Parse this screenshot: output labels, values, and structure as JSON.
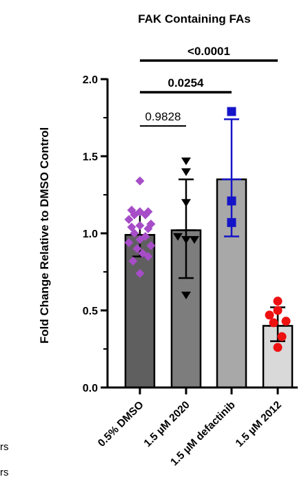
{
  "chart_data": {
    "type": "bar",
    "title": "FAK Containing FAs",
    "ylabel": "Fold Change Relative to DMSO Control",
    "xlabel": "",
    "ylim": [
      0,
      2.0
    ],
    "yticks": [
      "0.0",
      "0.5",
      "1.0",
      "1.5",
      "2.0"
    ],
    "categories": [
      "0.5% DMSO",
      "1.5 µM 2020",
      "1.5 µM defactinib",
      "1.5 µM 2012"
    ],
    "values": [
      0.99,
      1.02,
      1.35,
      0.4
    ],
    "error": [
      {
        "low": 0.85,
        "high": 1.13
      },
      {
        "low": 0.71,
        "high": 1.35
      },
      {
        "low": 0.98,
        "high": 1.74
      },
      {
        "low": 0.3,
        "high": 0.52
      }
    ],
    "bar_colors": [
      "#5f5f5f",
      "#7d7d7d",
      "#a8a8a8",
      "#d9d9d9"
    ],
    "point_colors": [
      "#a64dc7",
      "#000000",
      "#1414c8",
      "#ee1111"
    ],
    "error_colors": [
      "#000000",
      "#000000",
      "#1414c8",
      "#000000"
    ],
    "points": [
      [
        1.34,
        1.15,
        1.14,
        1.14,
        1.12,
        1.12,
        1.09,
        1.06,
        1.05,
        1.04,
        1.03,
        1.0,
        0.98,
        0.96,
        0.94,
        0.92,
        0.9,
        0.87,
        0.85,
        0.82,
        0.74
      ],
      [
        1.47,
        1.4,
        1.2,
        0.98,
        0.96,
        0.96,
        0.6
      ],
      [
        1.79,
        1.21,
        1.07
      ],
      [
        0.56,
        0.5,
        0.47,
        0.43,
        0.42,
        0.33,
        0.26
      ]
    ],
    "comparisons": [
      {
        "label": "0.9828",
        "from": 0,
        "to": 1,
        "bold": false
      },
      {
        "label": "0.0254",
        "from": 0,
        "to": 2,
        "bold": true
      },
      {
        "label": "<0.0001",
        "from": 0,
        "to": 3,
        "bold": true
      }
    ],
    "clipped_legend_text": [
      "rs",
      "rs"
    ]
  }
}
